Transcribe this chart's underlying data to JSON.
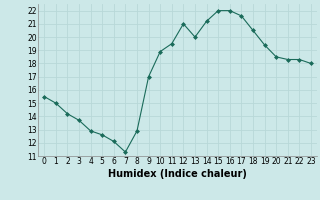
{
  "x": [
    0,
    1,
    2,
    3,
    4,
    5,
    6,
    7,
    8,
    9,
    10,
    11,
    12,
    13,
    14,
    15,
    16,
    17,
    18,
    19,
    20,
    21,
    22,
    23
  ],
  "y": [
    15.5,
    15.0,
    14.2,
    13.7,
    12.9,
    12.6,
    12.1,
    11.3,
    12.9,
    17.0,
    18.9,
    19.5,
    21.0,
    20.0,
    21.2,
    22.0,
    22.0,
    21.6,
    20.5,
    19.4,
    18.5,
    18.3,
    18.3,
    18.0
  ],
  "line_color": "#1a6b5a",
  "marker": "D",
  "marker_size": 2,
  "bg_color": "#cce8e8",
  "grid_color": "#b0d8d8",
  "xlabel": "Humidex (Indice chaleur)",
  "xlim": [
    -0.5,
    23.5
  ],
  "ylim": [
    11,
    22.5
  ],
  "yticks": [
    11,
    12,
    13,
    14,
    15,
    16,
    17,
    18,
    19,
    20,
    21,
    22
  ],
  "xticks": [
    0,
    1,
    2,
    3,
    4,
    5,
    6,
    7,
    8,
    9,
    10,
    11,
    12,
    13,
    14,
    15,
    16,
    17,
    18,
    19,
    20,
    21,
    22,
    23
  ],
  "tick_fontsize": 5.5,
  "xlabel_fontsize": 7.0
}
